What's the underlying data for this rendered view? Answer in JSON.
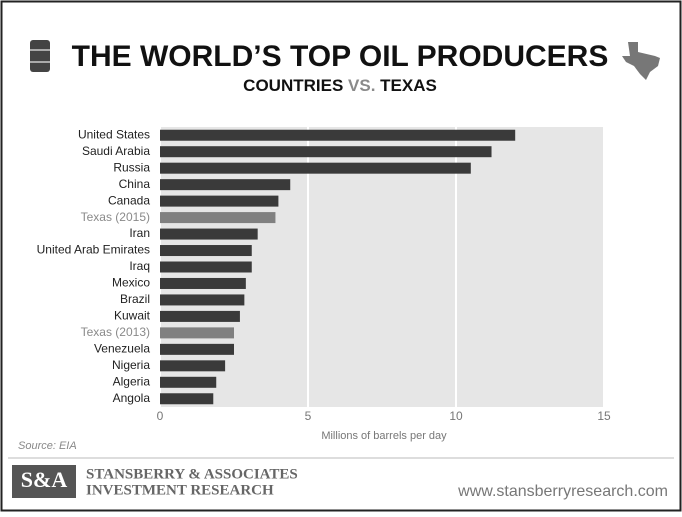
{
  "chart_data": {
    "type": "bar",
    "orientation": "horizontal",
    "title": "THE WORLD’S TOP OIL PRODUCERS",
    "subtitle_parts": [
      "COUNTRIES ",
      "VS.",
      " TEXAS"
    ],
    "subtitle_colors": [
      "#111111",
      "#8a8a8a",
      "#111111"
    ],
    "categories": [
      "United States",
      "Saudi Arabia",
      "Russia",
      "China",
      "Canada",
      "Texas (2015)",
      "Iran",
      "United Arab Emirates",
      "Iraq",
      "Mexico",
      "Brazil",
      "Kuwait",
      "Texas (2013)",
      "Venezuela",
      "Nigeria",
      "Algeria",
      "Angola"
    ],
    "values": [
      12.0,
      11.2,
      10.5,
      4.4,
      4.0,
      3.9,
      3.3,
      3.1,
      3.1,
      2.9,
      2.85,
      2.7,
      2.5,
      2.5,
      2.2,
      1.9,
      1.8
    ],
    "colors": [
      "#3a3a3a",
      "#3a3a3a",
      "#3a3a3a",
      "#3a3a3a",
      "#3a3a3a",
      "#808080",
      "#3a3a3a",
      "#3a3a3a",
      "#3a3a3a",
      "#3a3a3a",
      "#3a3a3a",
      "#3a3a3a",
      "#808080",
      "#3a3a3a",
      "#3a3a3a",
      "#3a3a3a",
      "#3a3a3a"
    ],
    "label_colors": [
      "#222222",
      "#222222",
      "#222222",
      "#222222",
      "#222222",
      "#8a8a8a",
      "#222222",
      "#222222",
      "#222222",
      "#222222",
      "#222222",
      "#222222",
      "#8a8a8a",
      "#222222",
      "#222222",
      "#222222",
      "#222222"
    ],
    "x_label": "Millions of barrels per day",
    "xlim": [
      0,
      15
    ],
    "xticks": [
      0,
      5,
      10,
      15
    ],
    "grid": true,
    "source": "Source: EIA"
  },
  "footer": {
    "logo": "S&A",
    "company_line1": "STANSBERRY & ASSOCIATES",
    "company_line2": "INVESTMENT RESEARCH",
    "url": "www.stansberryresearch.com"
  }
}
